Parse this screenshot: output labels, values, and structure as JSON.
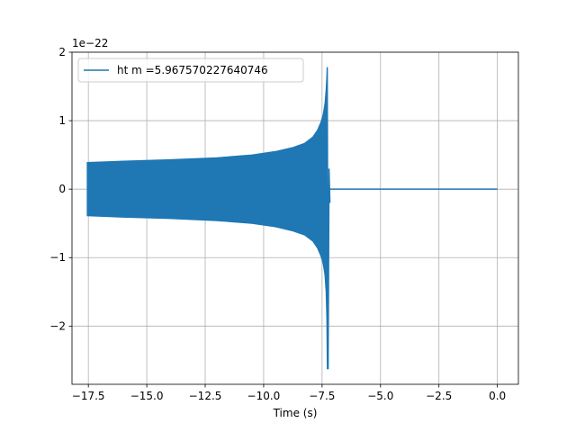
{
  "chart_data": {
    "type": "line",
    "title": "",
    "xlabel": "Time (s)",
    "ylabel": "",
    "y_scale_label": "1e−22",
    "xlim": [
      -18.2,
      0.9
    ],
    "ylim": [
      -2.85,
      2.0
    ],
    "x_ticks": [
      -17.5,
      -15.0,
      -12.5,
      -10.0,
      -7.5,
      -5.0,
      -2.5,
      0.0
    ],
    "x_tick_labels": [
      "−17.5",
      "−15.0",
      "−12.5",
      "−10.0",
      "−7.5",
      "−5.0",
      "−2.5",
      "0.0"
    ],
    "y_ticks": [
      2,
      1,
      0,
      -1,
      -2
    ],
    "y_tick_labels": [
      "2",
      "1",
      "0",
      "−1",
      "−2"
    ],
    "grid": true,
    "legend_position": "upper-left",
    "series": [
      {
        "name": "ht m =5.967570227640746",
        "color": "#1f77b4",
        "envelope": {
          "x": [
            -17.55,
            -16,
            -14,
            -12,
            -10.5,
            -9.5,
            -8.75,
            -8.25,
            -7.9,
            -7.7,
            -7.55,
            -7.45,
            -7.38,
            -7.33,
            -7.3,
            -7.28
          ],
          "upper": [
            0.39,
            0.41,
            0.43,
            0.46,
            0.5,
            0.55,
            0.61,
            0.67,
            0.76,
            0.86,
            0.98,
            1.1,
            1.25,
            1.45,
            1.65,
            1.78
          ],
          "lower": [
            -0.39,
            -0.41,
            -0.43,
            -0.46,
            -0.5,
            -0.55,
            -0.61,
            -0.67,
            -0.76,
            -0.86,
            -0.98,
            -1.1,
            -1.25,
            -1.5,
            -1.9,
            -2.63
          ]
        },
        "ringdown": {
          "x_start": -7.28,
          "x_end": -7.2
        },
        "tail": {
          "x_start": -7.2,
          "x_end": 0.0,
          "y": 0.0
        }
      }
    ]
  }
}
